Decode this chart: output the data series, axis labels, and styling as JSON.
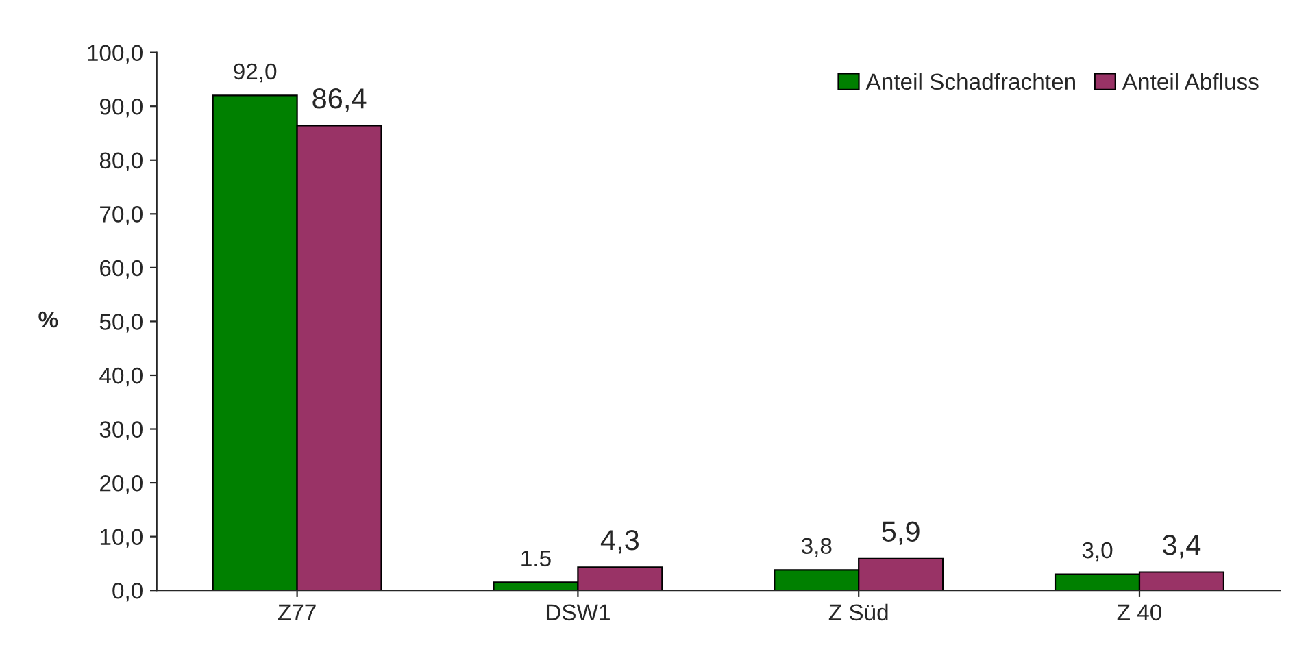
{
  "chart_data": {
    "type": "bar",
    "ylabel": "%",
    "categories": [
      "Z77",
      "DSW1",
      "Z Süd",
      "Z 40"
    ],
    "series": [
      {
        "name": "Anteil Schadfrachten",
        "color": "#008000",
        "values": [
          92.0,
          1.5,
          3.8,
          3.0
        ],
        "value_labels": [
          "92,0",
          "1.5",
          "3,8",
          "3,0"
        ]
      },
      {
        "name": "Anteil Abfluss",
        "color": "#993366",
        "values": [
          86.4,
          4.3,
          5.9,
          3.4
        ],
        "value_labels": [
          "86,4",
          "4,3",
          "5,9",
          "3,4"
        ]
      }
    ],
    "ylim": [
      0,
      100
    ],
    "yticks": [
      {
        "value": 0,
        "label": "0,0"
      },
      {
        "value": 10,
        "label": "10,0"
      },
      {
        "value": 20,
        "label": "20,0"
      },
      {
        "value": 30,
        "label": "30,0"
      },
      {
        "value": 40,
        "label": "40,0"
      },
      {
        "value": 50,
        "label": "50,0"
      },
      {
        "value": 60,
        "label": "60,0"
      },
      {
        "value": 70,
        "label": "70,0"
      },
      {
        "value": 80,
        "label": "80,0"
      },
      {
        "value": 90,
        "label": "90,0"
      },
      {
        "value": 100,
        "label": "100,0"
      }
    ],
    "grid": false,
    "legend": "top right"
  }
}
